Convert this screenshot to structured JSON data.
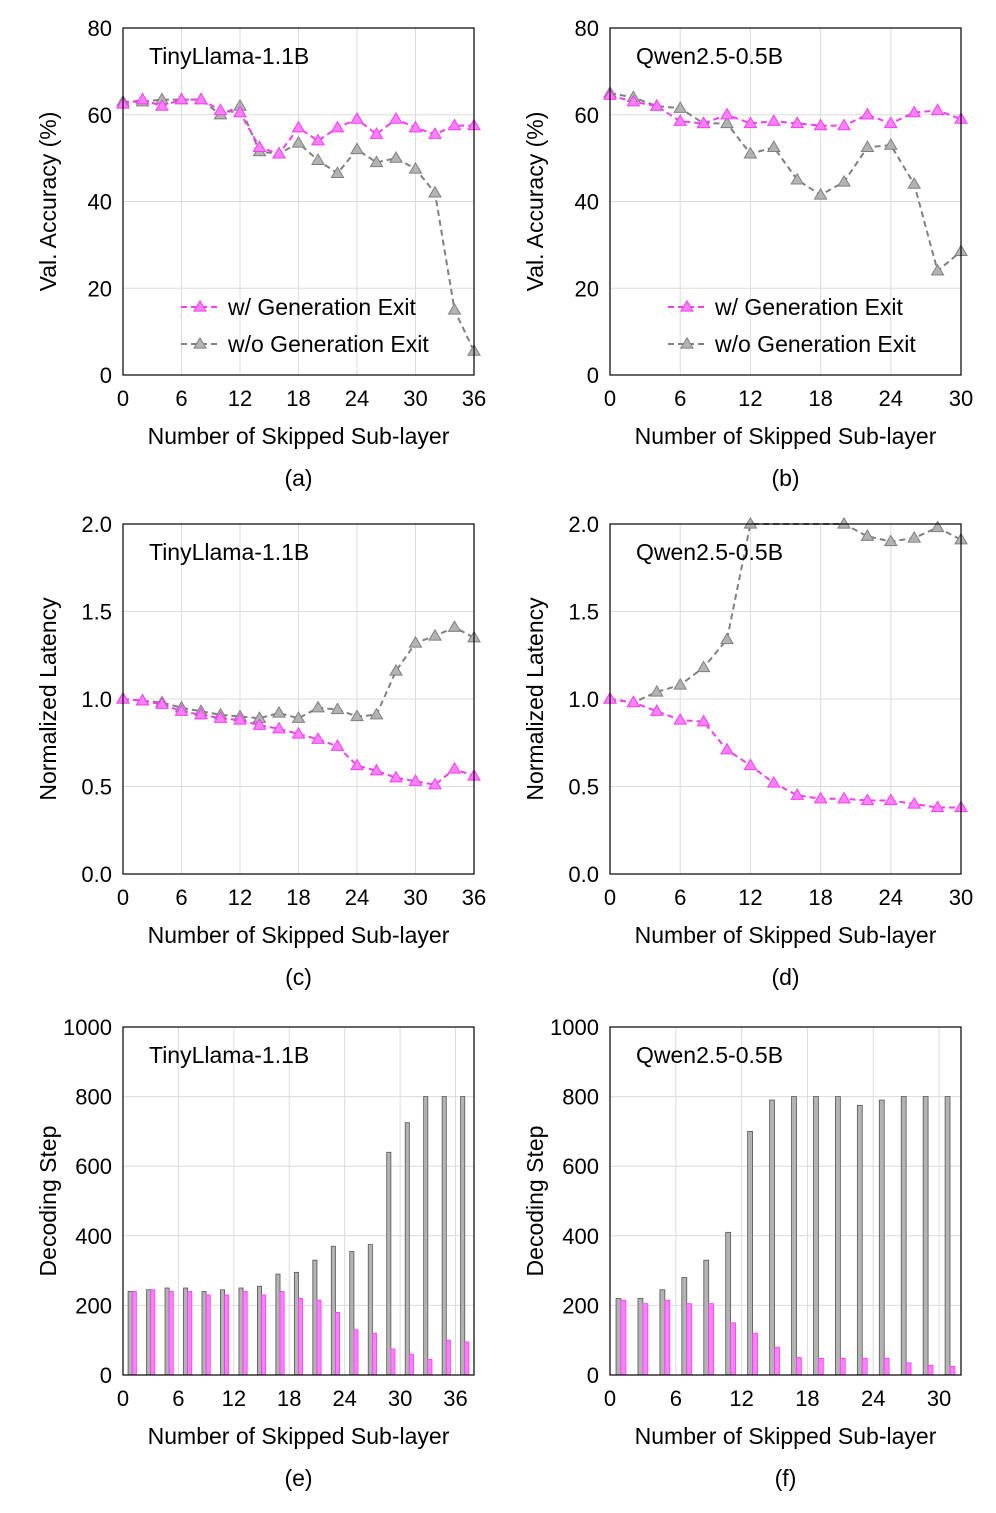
{
  "figure": {
    "captions": [
      "(a)",
      "(b)",
      "(c)",
      "(d)",
      "(e)",
      "(f)"
    ],
    "colors": {
      "with_exit": "#f040f0",
      "without_exit": "#808080",
      "with_exit_fill": "#ff80ff",
      "without_exit_fill": "#b3b3b3"
    }
  },
  "chart_data": [
    {
      "id": "a",
      "type": "line",
      "title": "TinyLlama-1.1B",
      "xlabel": "Number of Skipped Sub-layer",
      "ylabel": "Val. Accuracy (%)",
      "xlim": [
        0,
        36
      ],
      "ylim": [
        0,
        80
      ],
      "xticks": [
        0,
        6,
        12,
        18,
        24,
        30,
        36
      ],
      "yticks": [
        0,
        20,
        40,
        60,
        80
      ],
      "ytick_labels": [
        "0",
        "20",
        "40",
        "60",
        "80"
      ],
      "legend": [
        "w/ Generation Exit",
        "w/o Generation Exit"
      ],
      "legend_position": "bottom-right",
      "series": [
        {
          "name": "w/ Generation Exit",
          "x": [
            0,
            2,
            4,
            6,
            8,
            10,
            12,
            14,
            16,
            18,
            20,
            22,
            24,
            26,
            28,
            30,
            32,
            34,
            36
          ],
          "values": [
            62.5,
            63.5,
            62,
            63.5,
            63.5,
            61,
            60.5,
            52.5,
            51,
            57,
            54,
            57,
            59,
            55.5,
            59,
            57,
            55.5,
            57.5,
            57.5
          ]
        },
        {
          "name": "w/o Generation Exit",
          "x": [
            0,
            2,
            4,
            6,
            8,
            10,
            12,
            14,
            16,
            18,
            20,
            22,
            24,
            26,
            28,
            30,
            32,
            34,
            36
          ],
          "values": [
            63,
            63,
            63.5,
            63.5,
            63.5,
            60,
            62,
            51.5,
            51,
            53.5,
            49.5,
            46.5,
            52,
            49,
            50,
            47.5,
            42,
            15,
            5.5
          ]
        }
      ]
    },
    {
      "id": "b",
      "type": "line",
      "title": "Qwen2.5-0.5B",
      "xlabel": "Number of Skipped Sub-layer",
      "ylabel": "Val. Accuracy (%)",
      "xlim": [
        0,
        30
      ],
      "ylim": [
        0,
        80
      ],
      "xticks": [
        0,
        6,
        12,
        18,
        24,
        30
      ],
      "yticks": [
        0,
        20,
        40,
        60,
        80
      ],
      "ytick_labels": [
        "0",
        "20",
        "40",
        "60",
        "80"
      ],
      "legend": [
        "w/ Generation Exit",
        "w/o Generation Exit"
      ],
      "legend_position": "bottom-right",
      "series": [
        {
          "name": "w/ Generation Exit",
          "x": [
            0,
            2,
            4,
            6,
            8,
            10,
            12,
            14,
            16,
            18,
            20,
            22,
            24,
            26,
            28,
            30
          ],
          "values": [
            64.5,
            63,
            62,
            58.5,
            58,
            60,
            58,
            58.5,
            58,
            57.5,
            57.5,
            60,
            58,
            60.5,
            61,
            59
          ]
        },
        {
          "name": "w/o Generation Exit",
          "x": [
            0,
            2,
            4,
            6,
            8,
            10,
            12,
            14,
            16,
            18,
            20,
            22,
            24,
            26,
            28,
            30
          ],
          "values": [
            65,
            64,
            62,
            61.5,
            58,
            58,
            51,
            52.5,
            45,
            41.5,
            44.5,
            52.5,
            53,
            44,
            24,
            28.5
          ]
        }
      ]
    },
    {
      "id": "c",
      "type": "line",
      "title": "TinyLlama-1.1B",
      "xlabel": "Number of Skipped Sub-layer",
      "ylabel": "Normalized Latency",
      "xlim": [
        0,
        36
      ],
      "ylim": [
        0,
        2
      ],
      "xticks": [
        0,
        6,
        12,
        18,
        24,
        30,
        36
      ],
      "yticks": [
        0,
        0.5,
        1,
        1.5,
        2
      ],
      "ytick_labels": [
        "0.0",
        "0.5",
        "1.0",
        "1.5",
        "2.0"
      ],
      "series": [
        {
          "name": "w/ Generation Exit",
          "x": [
            0,
            2,
            4,
            6,
            8,
            10,
            12,
            14,
            16,
            18,
            20,
            22,
            24,
            26,
            28,
            30,
            32,
            34,
            36
          ],
          "values": [
            1.0,
            0.99,
            0.97,
            0.93,
            0.91,
            0.89,
            0.88,
            0.85,
            0.83,
            0.8,
            0.77,
            0.73,
            0.62,
            0.59,
            0.55,
            0.53,
            0.51,
            0.6,
            0.56
          ]
        },
        {
          "name": "w/o Generation Exit",
          "x": [
            0,
            2,
            4,
            6,
            8,
            10,
            12,
            14,
            16,
            18,
            20,
            22,
            24,
            26,
            28,
            30,
            32,
            34,
            36
          ],
          "values": [
            1.0,
            0.99,
            0.98,
            0.95,
            0.93,
            0.91,
            0.9,
            0.89,
            0.92,
            0.89,
            0.95,
            0.94,
            0.9,
            0.91,
            1.16,
            1.32,
            1.36,
            1.41,
            1.35
          ]
        }
      ]
    },
    {
      "id": "d",
      "type": "line",
      "title": "Qwen2.5-0.5B",
      "xlabel": "Number of Skipped Sub-layer",
      "ylabel": "Normalized Latency",
      "xlim": [
        0,
        30
      ],
      "ylim": [
        0,
        2
      ],
      "xticks": [
        0,
        6,
        12,
        18,
        24,
        30
      ],
      "yticks": [
        0,
        0.5,
        1,
        1.5,
        2
      ],
      "ytick_labels": [
        "0.0",
        "0.5",
        "1.0",
        "1.5",
        "2.0"
      ],
      "series": [
        {
          "name": "w/ Generation Exit",
          "x": [
            0,
            2,
            4,
            6,
            8,
            10,
            12,
            14,
            16,
            18,
            20,
            22,
            24,
            26,
            28,
            30
          ],
          "values": [
            1.0,
            0.98,
            0.93,
            0.88,
            0.87,
            0.71,
            0.62,
            0.52,
            0.45,
            0.43,
            0.43,
            0.42,
            0.42,
            0.4,
            0.38,
            0.38
          ]
        },
        {
          "name": "w/o Generation Exit",
          "x": [
            0,
            2,
            4,
            6,
            8,
            10,
            12,
            20,
            22,
            24,
            26,
            28,
            30
          ],
          "values": [
            1.0,
            0.98,
            1.04,
            1.08,
            1.18,
            1.34,
            2.0,
            2.0,
            1.93,
            1.9,
            1.92,
            1.98,
            1.91
          ]
        }
      ]
    },
    {
      "id": "e",
      "type": "bar",
      "title": "TinyLlama-1.1B",
      "xlabel": "Number of Skipped Sub-layer",
      "ylabel": "Decoding Step",
      "xlim": [
        0,
        38
      ],
      "ylim": [
        0,
        1000
      ],
      "xticks": [
        0,
        6,
        12,
        18,
        24,
        30,
        36
      ],
      "yticks": [
        0,
        200,
        400,
        600,
        800,
        1000
      ],
      "ytick_labels": [
        "0",
        "200",
        "400",
        "600",
        "800",
        "1000"
      ],
      "x": [
        1,
        3,
        5,
        7,
        9,
        11,
        13,
        15,
        17,
        19,
        21,
        23,
        25,
        27,
        29,
        31,
        33,
        35,
        37
      ],
      "series": [
        {
          "name": "w/o Generation Exit",
          "values": [
            240,
            245,
            250,
            250,
            240,
            245,
            250,
            255,
            290,
            295,
            330,
            370,
            355,
            375,
            640,
            725,
            800,
            800,
            800
          ]
        },
        {
          "name": "w/ Generation Exit",
          "values": [
            240,
            245,
            240,
            240,
            230,
            230,
            240,
            230,
            240,
            220,
            215,
            180,
            130,
            120,
            75,
            60,
            45,
            100,
            95
          ]
        }
      ]
    },
    {
      "id": "f",
      "type": "bar",
      "title": "Qwen2.5-0.5B",
      "xlabel": "Number of Skipped Sub-layer",
      "ylabel": "Decoding Step",
      "xlim": [
        0,
        32
      ],
      "ylim": [
        0,
        1000
      ],
      "xticks": [
        0,
        6,
        12,
        18,
        24,
        30
      ],
      "yticks": [
        0,
        200,
        400,
        600,
        800,
        1000
      ],
      "ytick_labels": [
        "0",
        "200",
        "400",
        "600",
        "800",
        "1000"
      ],
      "x": [
        1,
        3,
        5,
        7,
        9,
        11,
        13,
        15,
        17,
        19,
        21,
        23,
        25,
        27,
        29,
        31
      ],
      "series": [
        {
          "name": "w/o Generation Exit",
          "values": [
            220,
            220,
            245,
            280,
            330,
            410,
            700,
            790,
            800,
            800,
            800,
            775,
            790,
            800,
            800,
            800
          ]
        },
        {
          "name": "w/ Generation Exit",
          "values": [
            215,
            205,
            215,
            205,
            205,
            150,
            120,
            80,
            50,
            48,
            48,
            48,
            48,
            35,
            28,
            25
          ]
        }
      ]
    }
  ]
}
